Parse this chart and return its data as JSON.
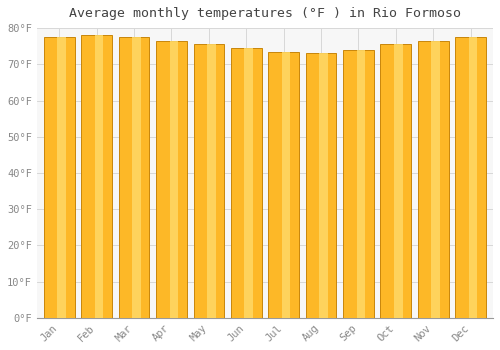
{
  "title": "Average monthly temperatures (°F ) in Rio Formoso",
  "months": [
    "Jan",
    "Feb",
    "Mar",
    "Apr",
    "May",
    "Jun",
    "Jul",
    "Aug",
    "Sep",
    "Oct",
    "Nov",
    "Dec"
  ],
  "values": [
    77.5,
    78.0,
    77.5,
    76.5,
    75.5,
    74.5,
    73.5,
    73.0,
    74.0,
    75.5,
    76.5,
    77.5
  ],
  "bar_color": "#FDB827",
  "bar_edge_color": "#C8860A",
  "bar_light_color": "#FFD966",
  "background_color": "#FFFFFF",
  "plot_bg_color": "#F7F7F7",
  "ylim": [
    0,
    80
  ],
  "yticks": [
    0,
    10,
    20,
    30,
    40,
    50,
    60,
    70,
    80
  ],
  "ytick_labels": [
    "0°F",
    "10°F",
    "20°F",
    "30°F",
    "40°F",
    "50°F",
    "60°F",
    "70°F",
    "80°F"
  ],
  "title_fontsize": 9.5,
  "tick_fontsize": 7.5,
  "grid_color": "#D8D8D8",
  "tick_color": "#888888"
}
